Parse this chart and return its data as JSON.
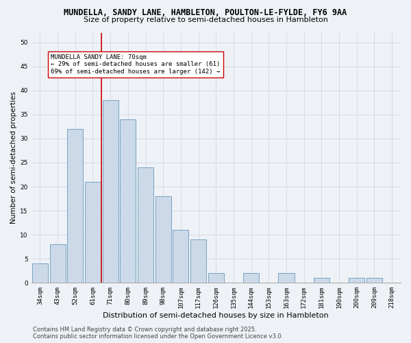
{
  "title_line1": "MUNDELLA, SANDY LANE, HAMBLETON, POULTON-LE-FYLDE, FY6 9AA",
  "title_line2": "Size of property relative to semi-detached houses in Hambleton",
  "xlabel": "Distribution of semi-detached houses by size in Hambleton",
  "ylabel": "Number of semi-detached properties",
  "categories": [
    "34sqm",
    "43sqm",
    "52sqm",
    "61sqm",
    "71sqm",
    "80sqm",
    "89sqm",
    "98sqm",
    "107sqm",
    "117sqm",
    "126sqm",
    "135sqm",
    "144sqm",
    "153sqm",
    "163sqm",
    "172sqm",
    "181sqm",
    "190sqm",
    "200sqm",
    "209sqm",
    "218sqm"
  ],
  "values": [
    4,
    8,
    32,
    21,
    38,
    34,
    24,
    18,
    11,
    9,
    2,
    0,
    2,
    0,
    2,
    0,
    1,
    0,
    1,
    1,
    0
  ],
  "bar_color": "#ccd9e8",
  "bar_edge_color": "#6699bb",
  "vline_color": "#cc0000",
  "annotation_title": "MUNDELLA SANDY LANE: 70sqm",
  "annotation_line1": "← 29% of semi-detached houses are smaller (61)",
  "annotation_line2": "69% of semi-detached houses are larger (142) →",
  "annotation_box_color": "#ffffff",
  "annotation_box_edge": "#cc0000",
  "ylim": [
    0,
    52
  ],
  "yticks": [
    0,
    5,
    10,
    15,
    20,
    25,
    30,
    35,
    40,
    45,
    50
  ],
  "footer_line1": "Contains HM Land Registry data © Crown copyright and database right 2025.",
  "footer_line2": "Contains public sector information licensed under the Open Government Licence v3.0.",
  "bg_color": "#eef2f7",
  "grid_color": "#d0d8e4",
  "title1_fontsize": 8.5,
  "title2_fontsize": 8.0,
  "xlabel_fontsize": 8.0,
  "ylabel_fontsize": 7.5,
  "tick_fontsize": 6.5,
  "annotation_fontsize": 6.5,
  "footer_fontsize": 6.0
}
